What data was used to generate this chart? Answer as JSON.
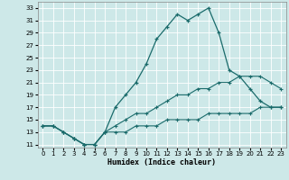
{
  "xlabel": "Humidex (Indice chaleur)",
  "bg_color": "#cde8e8",
  "grid_color": "#ffffff",
  "line_color": "#1a6b6b",
  "xlim": [
    -0.5,
    23.5
  ],
  "ylim": [
    10.5,
    34.0
  ],
  "xticks": [
    0,
    1,
    2,
    3,
    4,
    5,
    6,
    7,
    8,
    9,
    10,
    11,
    12,
    13,
    14,
    15,
    16,
    17,
    18,
    19,
    20,
    21,
    22,
    23
  ],
  "yticks": [
    11,
    13,
    15,
    17,
    19,
    21,
    23,
    25,
    27,
    29,
    31,
    33
  ],
  "line1_x": [
    0,
    1,
    2,
    3,
    4,
    5,
    6,
    7,
    8,
    9,
    10,
    11,
    12,
    13,
    14,
    15,
    16,
    17,
    18,
    19,
    20,
    21,
    22,
    23
  ],
  "line1_y": [
    14,
    14,
    13,
    12,
    11,
    11,
    13,
    17,
    19,
    21,
    24,
    28,
    30,
    32,
    31,
    32,
    33,
    29,
    23,
    22,
    20,
    18,
    17,
    17
  ],
  "line2_x": [
    0,
    1,
    2,
    3,
    4,
    5,
    6,
    7,
    8,
    9,
    10,
    11,
    12,
    13,
    14,
    15,
    16,
    17,
    18,
    19,
    20,
    21,
    22,
    23
  ],
  "line2_y": [
    14,
    14,
    13,
    12,
    11,
    11,
    13,
    14,
    15,
    16,
    16,
    17,
    18,
    19,
    19,
    20,
    20,
    21,
    21,
    22,
    22,
    22,
    21,
    20
  ],
  "line3_x": [
    0,
    1,
    2,
    3,
    4,
    5,
    6,
    7,
    8,
    9,
    10,
    11,
    12,
    13,
    14,
    15,
    16,
    17,
    18,
    19,
    20,
    21,
    22,
    23
  ],
  "line3_y": [
    14,
    14,
    13,
    12,
    11,
    11,
    13,
    13,
    13,
    14,
    14,
    14,
    15,
    15,
    15,
    15,
    16,
    16,
    16,
    16,
    16,
    17,
    17,
    17
  ]
}
